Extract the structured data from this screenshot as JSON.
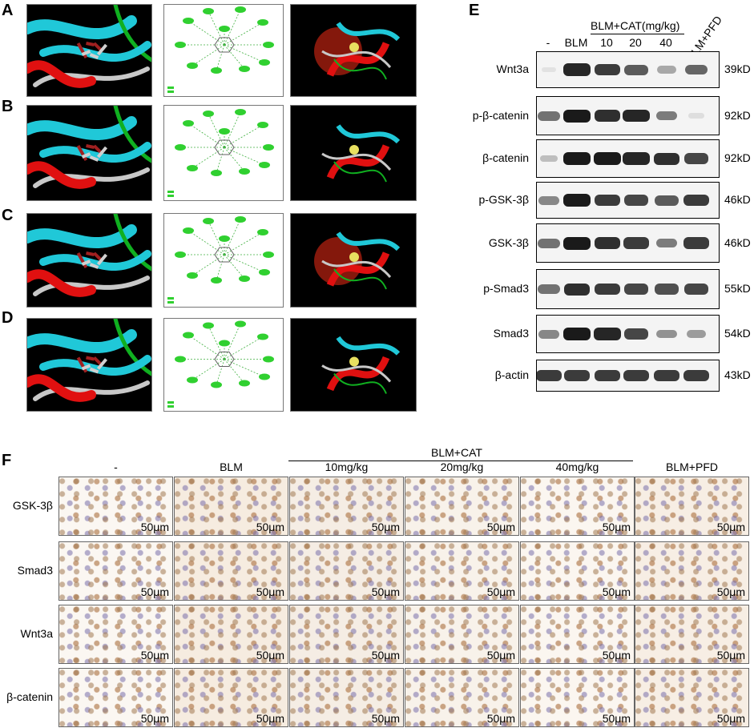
{
  "panel_letters": {
    "a": "A",
    "b": "B",
    "c": "C",
    "d": "D",
    "e": "E",
    "f": "F"
  },
  "western_blot": {
    "group_header": "BLM+CAT(mg/kg)",
    "lanes": [
      "-",
      "BLM",
      "10",
      "20",
      "40",
      "BLM+PFD"
    ],
    "rows": [
      {
        "protein": "Wnt3a",
        "size": "39kD",
        "band_intensity": [
          0.05,
          0.95,
          0.85,
          0.7,
          0.35,
          0.65
        ]
      },
      {
        "protein": "p-β-catenin",
        "size": "92kD",
        "band_intensity": [
          0.6,
          1.0,
          0.9,
          0.95,
          0.55,
          0.1
        ]
      },
      {
        "protein": "β-catenin",
        "size": "92kD",
        "band_intensity": [
          0.25,
          1.0,
          1.0,
          0.95,
          0.9,
          0.8
        ]
      },
      {
        "protein": "p-GSK-3β",
        "size": "46kD",
        "band_intensity": [
          0.5,
          1.0,
          0.85,
          0.8,
          0.7,
          0.85
        ]
      },
      {
        "protein": "GSK-3β",
        "size": "46kD",
        "band_intensity": [
          0.6,
          1.0,
          0.9,
          0.85,
          0.55,
          0.85
        ]
      },
      {
        "protein": "p-Smad3",
        "size": "55kD",
        "band_intensity": [
          0.6,
          0.9,
          0.85,
          0.8,
          0.75,
          0.8
        ]
      },
      {
        "protein": "Smad3",
        "size": "54kD",
        "band_intensity": [
          0.5,
          1.0,
          0.95,
          0.8,
          0.45,
          0.4
        ]
      },
      {
        "protein": "β-actin",
        "size": "43kD",
        "band_intensity": [
          0.85,
          0.85,
          0.85,
          0.85,
          0.85,
          0.85
        ]
      }
    ]
  },
  "ihc": {
    "group_header": "BLM+CAT",
    "columns": [
      "-",
      "BLM",
      "10mg/kg",
      "20mg/kg",
      "40mg/kg",
      "BLM+PFD"
    ],
    "rows": [
      "GSK-3β",
      "Smad3",
      "Wnt3a",
      "β-catenin"
    ],
    "scale_bar": "50μm"
  },
  "colors": {
    "helix": "#e01010",
    "sheet": "#20c8d8",
    "coil": "#c8c8c8",
    "loop": "#10b020",
    "interaction": "#30d030"
  }
}
